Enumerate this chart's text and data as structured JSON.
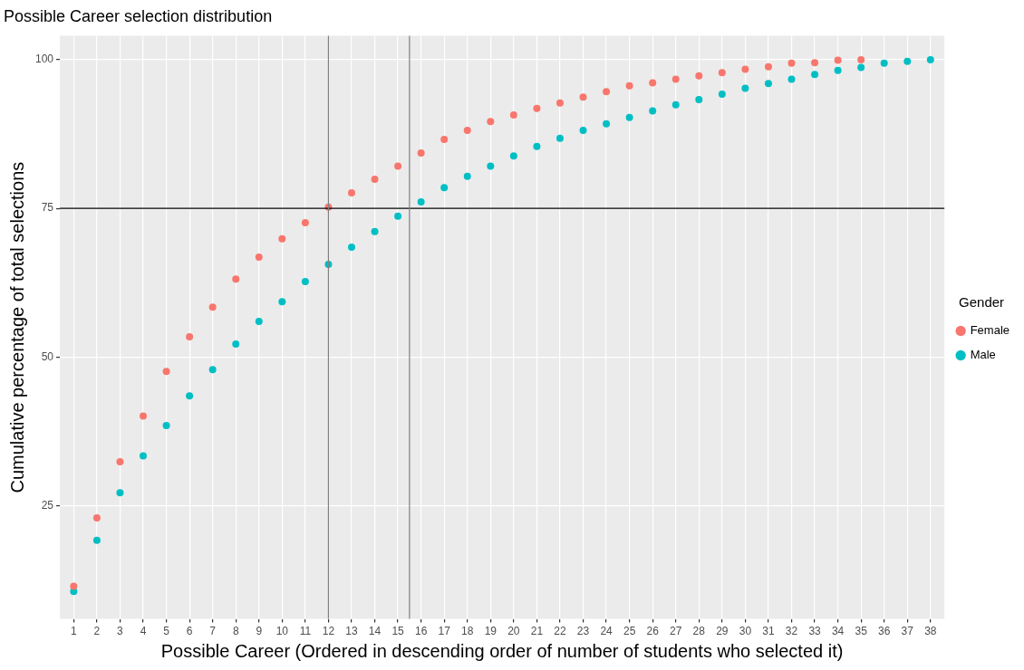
{
  "chart_data": {
    "type": "scatter",
    "title": "Possible Career selection distribution",
    "xlabel": "Possible Career (Ordered in descending order of number of students who selected it)",
    "ylabel": "Cumulative percentage of total selections",
    "legend_title": "Gender",
    "legend": "right",
    "grid": true,
    "marker": "circle",
    "xlim": [
      0.4,
      38.6
    ],
    "xticks": [
      1,
      2,
      3,
      4,
      5,
      6,
      7,
      8,
      9,
      10,
      11,
      12,
      13,
      14,
      15,
      16,
      17,
      18,
      19,
      20,
      21,
      22,
      23,
      24,
      25,
      26,
      27,
      28,
      29,
      30,
      31,
      32,
      33,
      34,
      35,
      36,
      37,
      38
    ],
    "ylim": [
      6,
      104
    ],
    "yticks": [
      25,
      50,
      75,
      100
    ],
    "ref_lines": [
      {
        "axis": "y",
        "value": 75,
        "color": "#000000"
      },
      {
        "axis": "x",
        "value": 12,
        "color": "#808080"
      },
      {
        "axis": "x",
        "value": 15.5,
        "color": "#808080"
      }
    ],
    "series": [
      {
        "name": "Female",
        "color": "#f8766d",
        "x": [
          1,
          2,
          3,
          4,
          5,
          6,
          7,
          8,
          9,
          10,
          11,
          12,
          13,
          14,
          15,
          16,
          17,
          18,
          19,
          20,
          21,
          22,
          23,
          24,
          25,
          26,
          27,
          28,
          29,
          30,
          31,
          32,
          33,
          34,
          35
        ],
        "values": [
          11.5,
          23.0,
          32.4,
          40.1,
          47.6,
          53.4,
          58.4,
          63.1,
          66.8,
          69.9,
          72.6,
          75.2,
          77.6,
          79.9,
          82.1,
          84.3,
          86.6,
          88.1,
          89.6,
          90.7,
          91.8,
          92.7,
          93.7,
          94.6,
          95.6,
          96.1,
          96.7,
          97.3,
          97.8,
          98.4,
          98.8,
          99.4,
          99.5,
          99.9,
          100
        ]
      },
      {
        "name": "Male",
        "color": "#00bfc4",
        "x": [
          1,
          2,
          3,
          4,
          5,
          6,
          7,
          8,
          9,
          10,
          11,
          12,
          13,
          14,
          15,
          16,
          17,
          18,
          19,
          20,
          21,
          22,
          23,
          24,
          25,
          26,
          27,
          28,
          29,
          30,
          31,
          32,
          33,
          34,
          35,
          36,
          37,
          38
        ],
        "values": [
          10.6,
          19.2,
          27.2,
          33.4,
          38.5,
          43.5,
          47.9,
          52.2,
          56.0,
          59.3,
          62.7,
          65.6,
          68.5,
          71.1,
          73.7,
          76.1,
          78.5,
          80.4,
          82.1,
          83.8,
          85.4,
          86.8,
          88.1,
          89.2,
          90.3,
          91.4,
          92.4,
          93.3,
          94.2,
          95.2,
          96.0,
          96.7,
          97.5,
          98.2,
          98.7,
          99.4,
          99.7,
          100
        ]
      }
    ]
  }
}
